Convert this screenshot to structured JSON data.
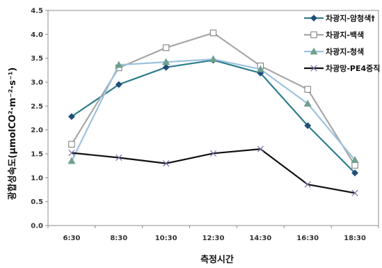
{
  "chart_data": {
    "type": "line",
    "categories": [
      "6:30",
      "8:30",
      "10:30",
      "12:30",
      "14:30",
      "16:30",
      "18:30"
    ],
    "xlabel": "측정시간",
    "ylabel": "광합성속도(μmolCO²·m⁻²·s⁻¹)",
    "ylim": [
      0,
      4.5
    ],
    "yticks": [
      "0.0",
      "0.5",
      "1.0",
      "1.5",
      "2.0",
      "2.5",
      "3.0",
      "3.5",
      "4.0",
      "4.5"
    ],
    "grid": false,
    "legend_position": "top-right",
    "series": [
      {
        "name": "차광지-암청색†",
        "marker": "diamond",
        "color": "#2e7d8c",
        "values": [
          2.28,
          2.95,
          3.31,
          3.46,
          3.19,
          2.09,
          1.1
        ]
      },
      {
        "name": "차광지-백색",
        "marker": "square-open",
        "color": "#a6a6a6",
        "values": [
          1.7,
          3.3,
          3.72,
          4.03,
          3.34,
          2.85,
          1.26
        ]
      },
      {
        "name": "차광지-청색",
        "marker": "triangle",
        "color": "#9cc2df",
        "values": [
          1.35,
          3.36,
          3.42,
          3.48,
          3.27,
          2.55,
          1.37
        ]
      },
      {
        "name": "차광망-PE4중직",
        "marker": "x",
        "color": "#111111",
        "values": [
          1.52,
          1.42,
          1.3,
          1.51,
          1.6,
          0.86,
          0.68
        ]
      }
    ]
  }
}
